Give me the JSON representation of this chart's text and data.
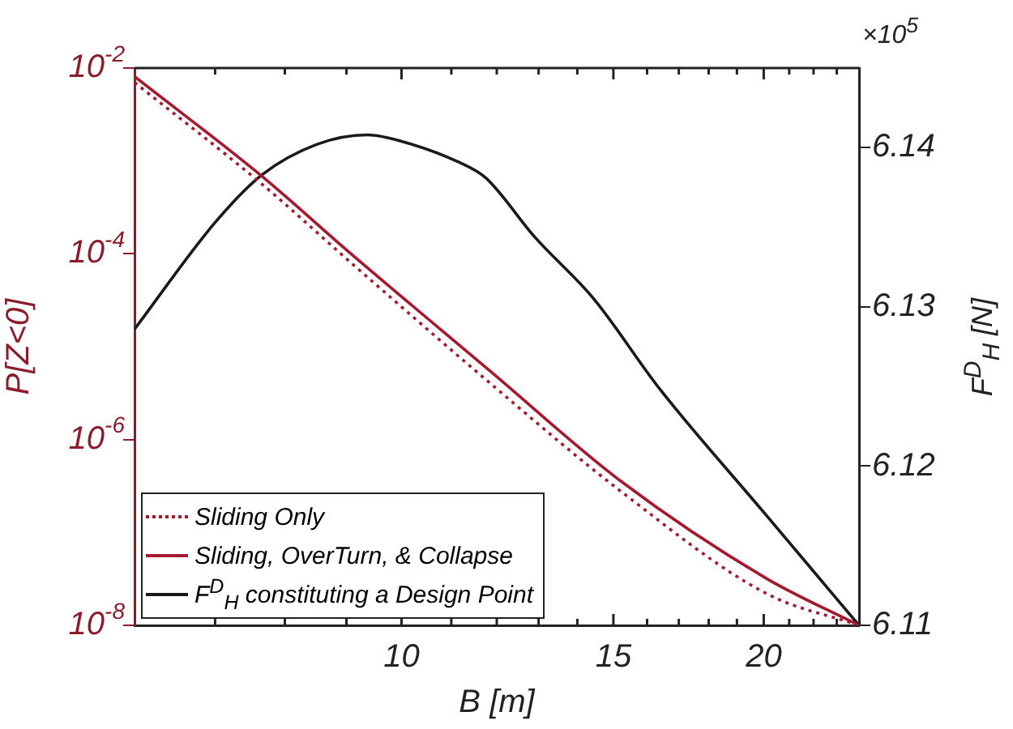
{
  "chart_data": {
    "type": "line",
    "xlabel": "B [m]",
    "ylabel": "P[Z<0]",
    "y2label": "F$^{D}$$_{H}$ [N]",
    "log": "xy",
    "grid": false,
    "legend": "bottom left",
    "annotations": [
      "×10$^{5}$"
    ],
    "xlim": [
      6,
      24
    ],
    "xticks": [
      {
        "value": 7,
        "label": null
      },
      {
        "value": 8,
        "label": null
      },
      {
        "value": 9,
        "label": null
      },
      10,
      {
        "value": 11,
        "label": null
      },
      {
        "value": 12,
        "label": null
      },
      {
        "value": 13,
        "label": null
      },
      {
        "value": 14,
        "label": null
      },
      15,
      {
        "value": 16,
        "label": null
      },
      {
        "value": 17,
        "label": null
      },
      {
        "value": 18,
        "label": null
      },
      {
        "value": 19,
        "label": null
      },
      20,
      {
        "value": 21,
        "label": null
      },
      {
        "value": 22,
        "label": null
      },
      {
        "value": 23,
        "label": null
      }
    ],
    "ylim": [
      1e-08,
      0.01
    ],
    "yticks": [
      {
        "value": 1e-08,
        "label": "10$^{-8}$"
      },
      {
        "value": 1e-06,
        "label": "10$^{-6}$"
      },
      {
        "value": 0.0001,
        "label": "10$^{-4}$"
      },
      {
        "value": 0.01,
        "label": "10$^{-2}$"
      }
    ],
    "y2lim": [
      6.11,
      6.145
    ],
    "y2ticks": [
      6.11,
      6.12,
      6.13,
      6.14
    ],
    "series": [
      {
        "name": "Sliding Only",
        "color": "#a6192e",
        "line_style": "dotted",
        "x": [
          6,
          7.66,
          9.08,
          11.86,
          15.2,
          20.1,
          24
        ],
        "values": [
          0.007,
          0.00056,
          8e-05,
          4e-06,
          2.8e-07,
          2.2e-08,
          1e-08
        ]
      },
      {
        "name": "Sliding, OverTurn, & Collapse",
        "color": "#a6192e",
        "line_style": "solid",
        "x": [
          6,
          7.66,
          9.08,
          11.86,
          15.2,
          20.1,
          24
        ],
        "values": [
          0.0081,
          0.00068,
          0.0001,
          5.4e-06,
          3.6e-07,
          3.2e-08,
          1e-08
        ]
      },
      {
        "name": "F$^{D}$$_{H}$ constituting a Design Point",
        "color": "#1a1a1a",
        "line_style": "solid",
        "axis": "y2",
        "x": [
          6,
          7,
          7.66,
          8.5,
          9.37,
          10,
          11.15,
          11.75,
          12.9,
          14.45,
          16.37,
          20,
          24
        ],
        "values": [
          6.1286,
          6.1353,
          6.1383,
          6.1402,
          6.1408,
          6.1404,
          6.1391,
          6.1381,
          6.1344,
          6.1305,
          6.1249,
          6.1171,
          6.11
        ]
      }
    ]
  }
}
